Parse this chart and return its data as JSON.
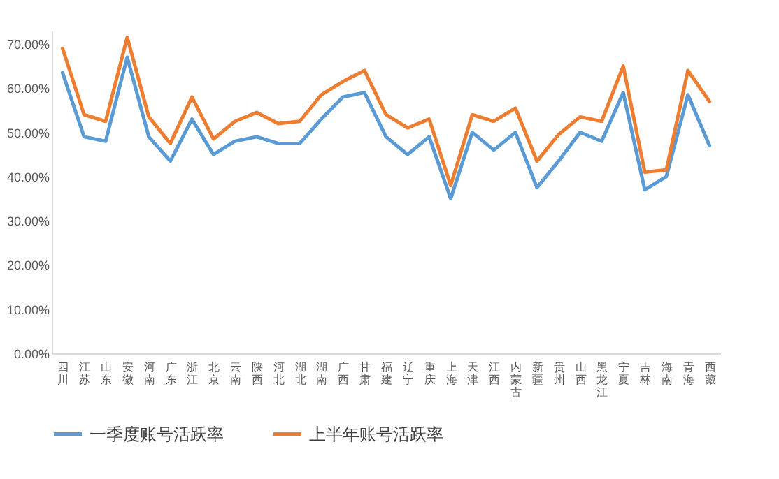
{
  "chart_data": {
    "type": "line",
    "categories": [
      "四川",
      "江苏",
      "山东",
      "安徽",
      "河南",
      "广东",
      "浙江",
      "北京",
      "云南",
      "陕西",
      "河北",
      "湖北",
      "湖南",
      "广西",
      "甘肃",
      "福建",
      "辽宁",
      "重庆",
      "上海",
      "天津",
      "江西",
      "内蒙古",
      "新疆",
      "贵州",
      "山西",
      "黑龙江",
      "宁夏",
      "吉林",
      "海南",
      "青海",
      "西藏"
    ],
    "series": [
      {
        "name": "一季度账号活跃率",
        "color": "#5b9bd5",
        "values": [
          63.5,
          49,
          48,
          67,
          49,
          43.5,
          53,
          45,
          48,
          49,
          47.5,
          47.5,
          53,
          58,
          59,
          49,
          45,
          49,
          35,
          50,
          46,
          50,
          37.5,
          43.5,
          50,
          48,
          59,
          37,
          40,
          58.5,
          47
        ]
      },
      {
        "name": "上半年账号活跃率",
        "color": "#ed7d31",
        "values": [
          69,
          54,
          52.5,
          71.5,
          53.5,
          47.5,
          58,
          48.5,
          52.5,
          54.5,
          52,
          52.5,
          58.5,
          61.5,
          64,
          54,
          51,
          53,
          38,
          54,
          52.5,
          55.5,
          43.5,
          49.5,
          53.5,
          52.5,
          65,
          41,
          41.5,
          64,
          57
        ]
      }
    ],
    "ylim": [
      0,
      73
    ],
    "yticks": [
      {
        "value": 0,
        "label": "0.00%"
      },
      {
        "value": 10,
        "label": "10.00%"
      },
      {
        "value": 20,
        "label": "20.00%"
      },
      {
        "value": 30,
        "label": "30.00%"
      },
      {
        "value": 40,
        "label": "40.00%"
      },
      {
        "value": 50,
        "label": "50.00%"
      },
      {
        "value": 60,
        "label": "60.00%"
      },
      {
        "value": 70,
        "label": "70.00%"
      }
    ],
    "grid": false,
    "legend": "bottom",
    "marker": "none",
    "line_style": "solid"
  }
}
